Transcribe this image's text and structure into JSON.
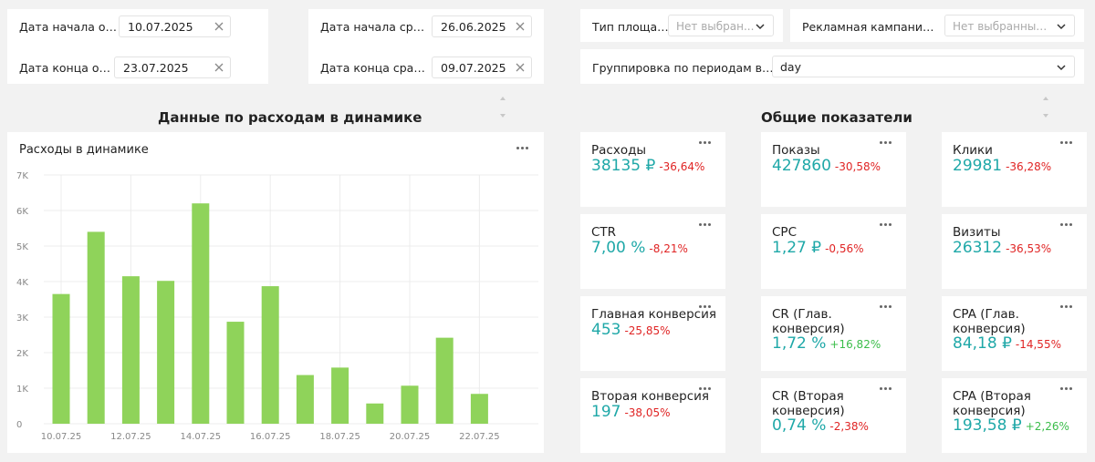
{
  "filters": {
    "report_start": {
      "label": "Дата начала отчета",
      "value": "10.07.2025"
    },
    "report_end": {
      "label": "Дата конца отчета",
      "value": "23.07.2025"
    },
    "compare_start": {
      "label": "Дата начала сравне...",
      "value": "26.06.2025"
    },
    "compare_end": {
      "label": "Дата конца сравнен...",
      "value": "09.07.2025"
    },
    "platform_type": {
      "label": "Тип площадки",
      "placeholder": "Нет выбран..."
    },
    "direct_campaign": {
      "label": "Рекламная кампания дир...",
      "placeholder": "Нет выбранных з..."
    },
    "grouping": {
      "label": "Группировка по периодам времени",
      "value": "day"
    }
  },
  "sections": {
    "left_title": "Данные по расходам в динамике",
    "right_title": "Общие показатели"
  },
  "chart": {
    "title": "Расходы в динамике"
  },
  "chart_data": {
    "type": "bar",
    "title": "Расходы в динамике",
    "categories": [
      "10.07.25",
      "11.07.25",
      "12.07.25",
      "13.07.25",
      "14.07.25",
      "15.07.25",
      "16.07.25",
      "17.07.25",
      "18.07.25",
      "19.07.25",
      "20.07.25",
      "21.07.25",
      "22.07.25"
    ],
    "x_tick_labels": [
      "10.07.25",
      "12.07.25",
      "14.07.25",
      "16.07.25",
      "18.07.25",
      "20.07.25",
      "22.07.25"
    ],
    "values": [
      3650,
      5400,
      4150,
      4020,
      6200,
      2870,
      3870,
      1370,
      1580,
      570,
      1070,
      2420,
      840
    ],
    "ylim": [
      0,
      7000
    ],
    "y_tick_labels": [
      "0",
      "1K",
      "2K",
      "3K",
      "4K",
      "5K",
      "6K",
      "7K"
    ],
    "grid": true,
    "bar_color": "#8fd35a"
  },
  "kpis": [
    {
      "name": "Расходы",
      "value": "38135 ₽",
      "delta": "-36,64%",
      "trend": "neg"
    },
    {
      "name": "Показы",
      "value": "427860",
      "delta": "-30,58%",
      "trend": "neg"
    },
    {
      "name": "Клики",
      "value": "29981",
      "delta": "-36,28%",
      "trend": "neg"
    },
    {
      "name": "CTR",
      "value": "7,00 %",
      "delta": "-8,21%",
      "trend": "neg"
    },
    {
      "name": "CPC",
      "value": "1,27 ₽",
      "delta": "-0,56%",
      "trend": "neg"
    },
    {
      "name": "Визиты",
      "value": "26312",
      "delta": "-36,53%",
      "trend": "neg"
    },
    {
      "name": "Главная конверсия",
      "value": "453",
      "delta": "-25,85%",
      "trend": "neg"
    },
    {
      "name": "CR (Глав.\nконверсия)",
      "value": "1,72 %",
      "delta": "+16,82%",
      "trend": "pos"
    },
    {
      "name": "CPA (Глав.\nконверсия)",
      "value": "84,18 ₽",
      "delta": "-14,55%",
      "trend": "neg"
    },
    {
      "name": "Вторая конверсия",
      "value": "197",
      "delta": "-38,05%",
      "trend": "neg"
    },
    {
      "name": "CR (Вторая\nконверсия)",
      "value": "0,74 %",
      "delta": "-2,38%",
      "trend": "neg"
    },
    {
      "name": "CPA (Вторая\nконверсия)",
      "value": "193,58 ₽",
      "delta": "+2,26%",
      "trend": "pos"
    }
  ],
  "colors": {
    "accent_value": "#1fa8a8",
    "negative": "#e02424",
    "positive": "#3bbd4a"
  }
}
